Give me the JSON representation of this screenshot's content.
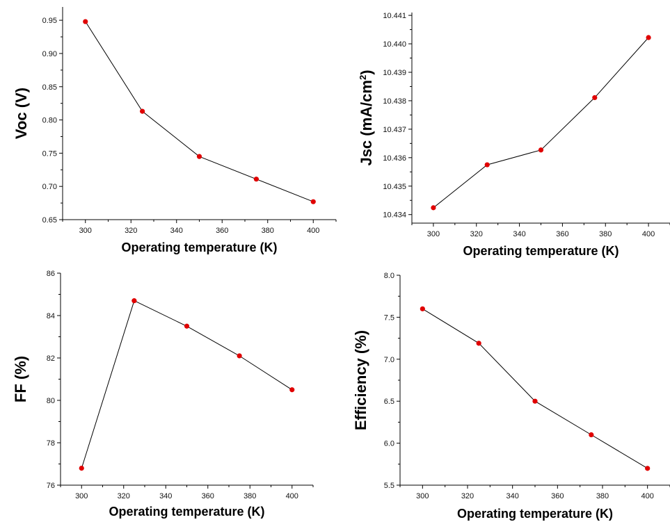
{
  "chart_data": [
    {
      "type": "line",
      "xlabel": "Operating temperature (K)",
      "ylabel": "Voc (V)",
      "x": [
        300,
        325,
        350,
        375,
        400
      ],
      "series": [
        {
          "values": [
            0.948,
            0.813,
            0.745,
            0.711,
            0.677
          ]
        }
      ],
      "xlim": [
        290,
        410
      ],
      "ylim": [
        0.65,
        0.97
      ],
      "xticks": [
        "300",
        "320",
        "340",
        "360",
        "380",
        "400"
      ],
      "yticks": [
        "0.65",
        "0.70",
        "0.75",
        "0.80",
        "0.85",
        "0.90",
        "0.95"
      ],
      "grid": false,
      "marker_color": "#e00000",
      "line_color": "#000000"
    },
    {
      "type": "line",
      "xlabel": "Operating temperature (K)",
      "ylabel": "Jsc (mA/cm",
      "ylabel_sup": "2",
      "ylabel_suffix": ")",
      "x": [
        300,
        325,
        350,
        375,
        400
      ],
      "series": [
        {
          "values": [
            10.43424,
            10.43575,
            10.43627,
            10.43811,
            10.44022
          ]
        }
      ],
      "xlim": [
        290,
        410
      ],
      "ylim": [
        10.4337,
        10.4411
      ],
      "xticks": [
        "300",
        "320",
        "340",
        "360",
        "380",
        "400"
      ],
      "yticks": [
        "10.434",
        "10.435",
        "10.436",
        "10.437",
        "10.438",
        "10.439",
        "10.440",
        "10.441"
      ],
      "grid": false,
      "marker_color": "#e00000",
      "line_color": "#000000"
    },
    {
      "type": "line",
      "xlabel": "Operating temperature (K)",
      "ylabel": "FF (%)",
      "x": [
        300,
        325,
        350,
        375,
        400
      ],
      "series": [
        {
          "values": [
            76.8,
            84.7,
            83.5,
            82.1,
            80.5
          ]
        }
      ],
      "xlim": [
        290,
        410
      ],
      "ylim": [
        76,
        86
      ],
      "xticks": [
        "300",
        "320",
        "340",
        "360",
        "380",
        "400"
      ],
      "yticks": [
        "76",
        "78",
        "80",
        "82",
        "84",
        "86"
      ],
      "grid": false,
      "marker_color": "#e00000",
      "line_color": "#000000"
    },
    {
      "type": "line",
      "xlabel": "Operating temperature (K)",
      "ylabel": "Efficiency (%)",
      "x": [
        300,
        325,
        350,
        375,
        400
      ],
      "series": [
        {
          "values": [
            7.6,
            7.19,
            6.5,
            6.1,
            5.7
          ]
        }
      ],
      "xlim": [
        290,
        410
      ],
      "ylim": [
        5.5,
        8.0
      ],
      "xticks": [
        "300",
        "320",
        "340",
        "360",
        "380",
        "400"
      ],
      "yticks": [
        "5.5",
        "6.0",
        "6.5",
        "7.0",
        "7.5",
        "8.0"
      ],
      "grid": false,
      "marker_color": "#e00000",
      "line_color": "#000000"
    }
  ]
}
